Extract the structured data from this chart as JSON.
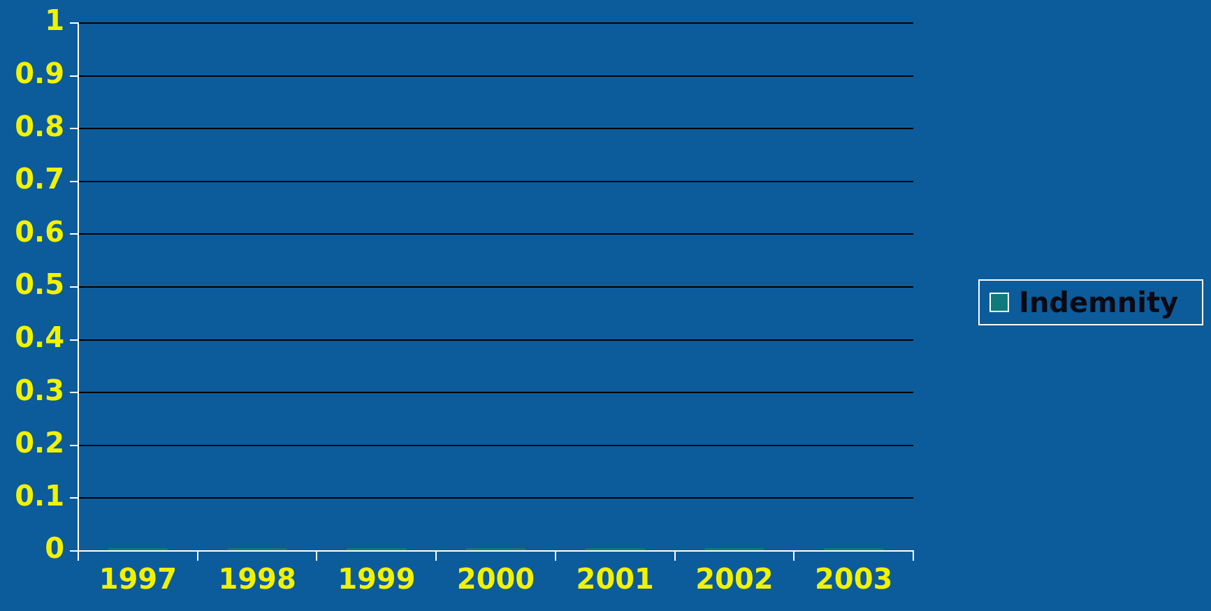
{
  "chart_data": {
    "type": "bar",
    "categories": [
      "1997",
      "1998",
      "1999",
      "2000",
      "2001",
      "2002",
      "2003"
    ],
    "series": [
      {
        "name": "Indemnity",
        "color": "#0f7a7c",
        "values": [
          0,
          0,
          0,
          0,
          0,
          0,
          0
        ]
      }
    ],
    "ylim": [
      0,
      1
    ],
    "yticks": [
      0,
      0.1,
      0.2,
      0.3,
      0.4,
      0.5,
      0.6,
      0.7,
      0.8,
      0.9,
      1
    ],
    "grid": "y",
    "legend": "right"
  }
}
